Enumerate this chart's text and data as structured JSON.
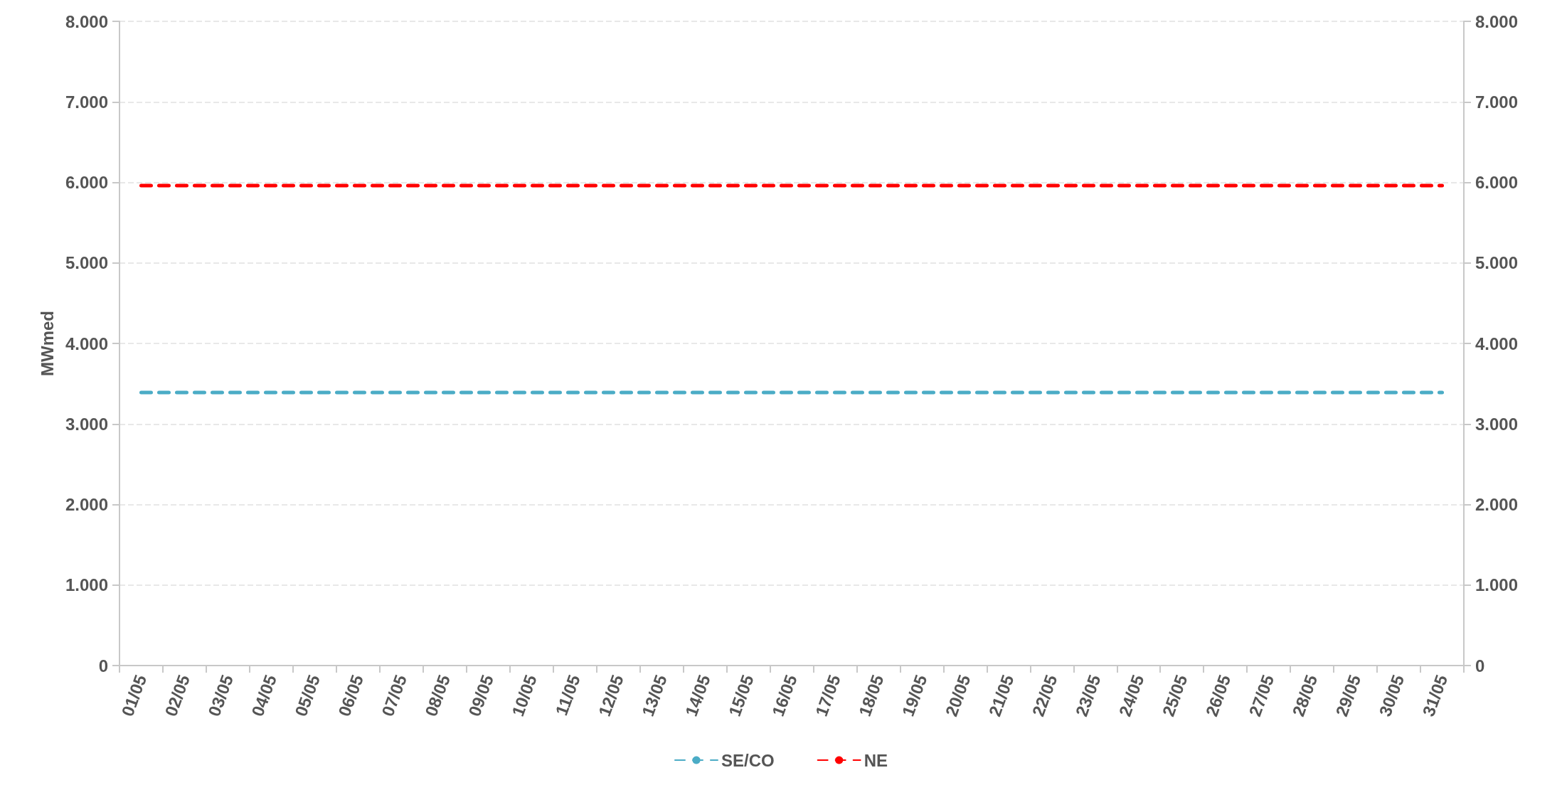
{
  "chart_data": {
    "type": "line",
    "ylabel": "MWmed",
    "categories": [
      "01/05",
      "02/05",
      "03/05",
      "04/05",
      "05/05",
      "06/05",
      "07/05",
      "08/05",
      "09/05",
      "10/05",
      "11/05",
      "12/05",
      "13/05",
      "14/05",
      "15/05",
      "16/05",
      "17/05",
      "18/05",
      "19/05",
      "20/05",
      "21/05",
      "22/05",
      "23/05",
      "24/05",
      "25/05",
      "26/05",
      "27/05",
      "28/05",
      "29/05",
      "30/05",
      "31/05"
    ],
    "series": [
      {
        "name": "SE/CO",
        "color": "#4bacc6",
        "values": [
          3390,
          3390,
          3390,
          3390,
          3390,
          3390,
          3390,
          3390,
          3390,
          3390,
          3390,
          3390,
          3390,
          3390,
          3390,
          3390,
          3390,
          3390,
          3390,
          3390,
          3390,
          3390,
          3390,
          3390,
          3390,
          3390,
          3390,
          3390,
          3390,
          3390,
          3390
        ]
      },
      {
        "name": "NE",
        "color": "#ff0000",
        "values": [
          5960,
          5960,
          5960,
          5960,
          5960,
          5960,
          5960,
          5960,
          5960,
          5960,
          5960,
          5960,
          5960,
          5960,
          5960,
          5960,
          5960,
          5960,
          5960,
          5960,
          5960,
          5960,
          5960,
          5960,
          5960,
          5960,
          5960,
          5960,
          5960,
          5960,
          5960
        ]
      }
    ],
    "ylim": [
      0,
      8000
    ],
    "yticks": [
      0,
      {
        "value": 1000,
        "label": "1.000"
      },
      {
        "value": 2000,
        "label": "2.000"
      },
      {
        "value": 3000,
        "label": "3.000"
      },
      {
        "value": 4000,
        "label": "4.000"
      },
      {
        "value": 5000,
        "label": "5.000"
      },
      {
        "value": 6000,
        "label": "6.000"
      },
      {
        "value": 7000,
        "label": "7.000"
      },
      {
        "value": 8000,
        "label": "8.000"
      }
    ],
    "y2lim": [
      0,
      8000
    ],
    "y2ticks": [
      0,
      {
        "value": 1000,
        "label": "1.000"
      },
      {
        "value": 2000,
        "label": "2.000"
      },
      {
        "value": 3000,
        "label": "3.000"
      },
      {
        "value": 4000,
        "label": "4.000"
      },
      {
        "value": 5000,
        "label": "5.000"
      },
      {
        "value": 6000,
        "label": "6.000"
      },
      {
        "value": 7000,
        "label": "7.000"
      },
      {
        "value": 8000,
        "label": "8.000"
      }
    ],
    "grid": "y",
    "legend": "bottom",
    "marker": "none",
    "line_style": "dashed"
  }
}
